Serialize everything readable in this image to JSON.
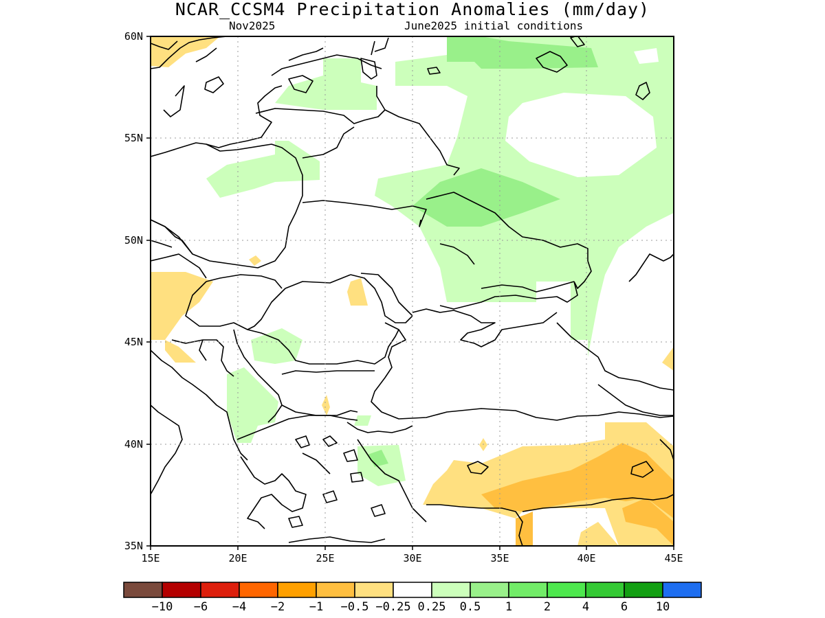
{
  "title": "NCAR_CCSM4 Precipitation Anomalies (mm/day)",
  "subtitle_left": "Nov2025",
  "subtitle_right": "June2025 initial conditions",
  "map": {
    "lon_range": [
      15,
      45
    ],
    "lat_range": [
      35,
      60
    ],
    "x_ticks": [
      "15E",
      "20E",
      "25E",
      "30E",
      "35E",
      "40E",
      "45E"
    ],
    "y_ticks": [
      "35N",
      "40N",
      "45N",
      "50N",
      "55N",
      "60N"
    ],
    "grid": "dotted"
  },
  "colorbar": {
    "colors": [
      "#7a4a3c",
      "#b40000",
      "#dd1f0c",
      "#ff6600",
      "#ffa000",
      "#ffbf40",
      "#ffe080",
      "#ffffff",
      "#ccffbb",
      "#99f08a",
      "#72ec68",
      "#4ee84e",
      "#34c934",
      "#129f12",
      "#1e6ef0"
    ],
    "labels": [
      "-10",
      "-6",
      "-4",
      "-2",
      "-1",
      "-0.5",
      "-0.25",
      "0.25",
      "0.5",
      "1",
      "2",
      "4",
      "6",
      "10"
    ]
  }
}
